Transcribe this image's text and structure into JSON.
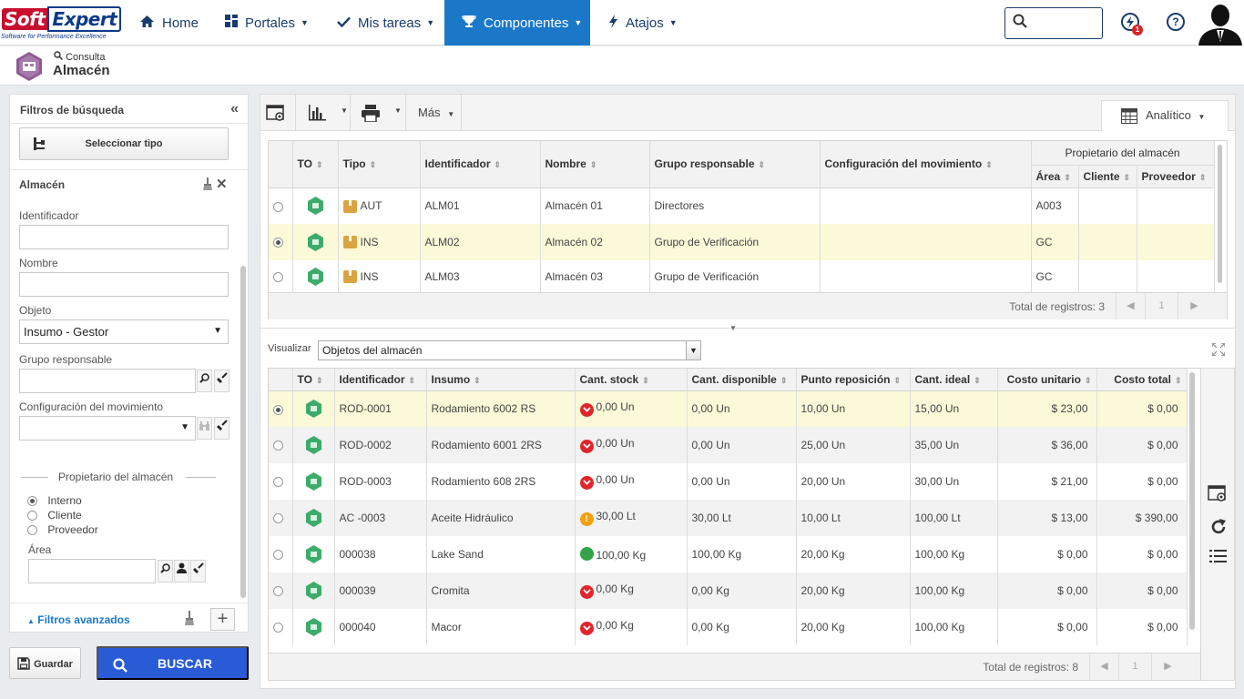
{
  "header": {
    "logo_text_1": "Soft",
    "logo_text_2": "Expert",
    "logo_tagline": "Software for Performance Excellence",
    "nav": [
      {
        "label": "Home",
        "icon": "home-icon"
      },
      {
        "label": "Portales",
        "icon": "grid-icon"
      },
      {
        "label": "Mis tareas",
        "icon": "check-icon"
      },
      {
        "label": "Componentes",
        "icon": "trophy-icon"
      },
      {
        "label": "Atajos",
        "icon": "bolt-icon"
      }
    ],
    "notification_count": "1",
    "help_symbol": "?"
  },
  "page": {
    "crumb": "Consulta",
    "title": "Almacén"
  },
  "filters": {
    "title": "Filtros de búsqueda",
    "select_type": "Seleccionar tipo",
    "section": "Almacén",
    "identificador_label": "Identificador",
    "identificador_value": "",
    "nombre_label": "Nombre",
    "nombre_value": "",
    "objeto_label": "Objeto",
    "objeto_value": "Insumo - Gestor",
    "grupo_label": "Grupo responsable",
    "config_label": "Configuración del movimiento",
    "owner_title": "Propietario del almacén",
    "owner_options": [
      "Interno",
      "Cliente",
      "Proveedor"
    ],
    "owner_selected": "Interno",
    "area_label": "Área",
    "advanced": "Filtros avanzados",
    "save": "Guardar",
    "search": "BUSCAR"
  },
  "toolbar": {
    "more": "Más",
    "view_mode": "Analítico"
  },
  "warehouses": {
    "columns": [
      "TO",
      "Tipo",
      "Identificador",
      "Nombre",
      "Grupo responsable",
      "Configuración del movimiento"
    ],
    "owner_group": "Propietario del almacén",
    "owner_columns": [
      "Área",
      "Cliente",
      "Proveedor"
    ],
    "rows": [
      {
        "tipo": "AUT",
        "id": "ALM01",
        "nombre": "Almacén 01",
        "grupo": "Directores",
        "config": "",
        "area": "A003",
        "cliente": "",
        "proveedor": ""
      },
      {
        "tipo": "INS",
        "id": "ALM02",
        "nombre": "Almacén 02",
        "grupo": "Grupo de Verificación",
        "config": "",
        "area": "GC",
        "cliente": "",
        "proveedor": ""
      },
      {
        "tipo": "INS",
        "id": "ALM03",
        "nombre": "Almacén 03",
        "grupo": "Grupo de Verificación",
        "config": "",
        "area": "GC",
        "cliente": "",
        "proveedor": ""
      }
    ],
    "selected_index": 1,
    "total": "Total de registros: 3",
    "page": "1"
  },
  "objects": {
    "view_label": "Visualizar",
    "view_value": "Objetos del almacén",
    "columns": [
      "TO",
      "Identificador",
      "Insumo",
      "Cant. stock",
      "Cant. disponible",
      "Punto reposición",
      "Cant. ideal",
      "Costo unitario",
      "Costo total"
    ],
    "rows": [
      {
        "id": "ROD-0001",
        "insumo": "Rodamiento 6002 RS",
        "status": "red",
        "stock": "0,00 Un",
        "disp": "0,00 Un",
        "punto": "10,00 Un",
        "ideal": "15,00 Un",
        "unit": "$ 23,00",
        "total": "$ 0,00"
      },
      {
        "id": "ROD-0002",
        "insumo": "Rodamiento 6001 2RS",
        "status": "red",
        "stock": "0,00 Un",
        "disp": "0,00 Un",
        "punto": "25,00 Un",
        "ideal": "35,00 Un",
        "unit": "$ 36,00",
        "total": "$ 0,00"
      },
      {
        "id": "ROD-0003",
        "insumo": "Rodamiento 608 2RS",
        "status": "red",
        "stock": "0,00 Un",
        "disp": "0,00 Un",
        "punto": "20,00 Un",
        "ideal": "30,00 Un",
        "unit": "$ 21,00",
        "total": "$ 0,00"
      },
      {
        "id": "AC -0003",
        "insumo": "Aceite Hidráulico",
        "status": "yellow",
        "stock": "30,00 Lt",
        "disp": "30,00 Lt",
        "punto": "10,00 Lt",
        "ideal": "100,00 Lt",
        "unit": "$ 13,00",
        "total": "$ 390,00"
      },
      {
        "id": "000038",
        "insumo": "Lake Sand",
        "status": "green",
        "stock": "100,00 Kg",
        "disp": "100,00 Kg",
        "punto": "20,00 Kg",
        "ideal": "100,00 Kg",
        "unit": "$ 0,00",
        "total": "$ 0,00"
      },
      {
        "id": "000039",
        "insumo": "Cromita",
        "status": "red",
        "stock": "0,00 Kg",
        "disp": "0,00 Kg",
        "punto": "20,00 Kg",
        "ideal": "100,00 Kg",
        "unit": "$ 0,00",
        "total": "$ 0,00"
      },
      {
        "id": "000040",
        "insumo": "Macor",
        "status": "red",
        "stock": "0,00 Kg",
        "disp": "0,00 Kg",
        "punto": "20,00 Kg",
        "ideal": "100,00 Kg",
        "unit": "$ 0,00",
        "total": "$ 0,00"
      }
    ],
    "selected_index": 0,
    "total": "Total de registros: 8",
    "page": "1"
  },
  "colors": {
    "accent": "#1b78c8",
    "search_button": "#2a5bd7",
    "selected_row": "#fbf9d8",
    "status_red": "#e0262c",
    "status_yellow": "#f0a10c",
    "status_green": "#35a24a"
  }
}
